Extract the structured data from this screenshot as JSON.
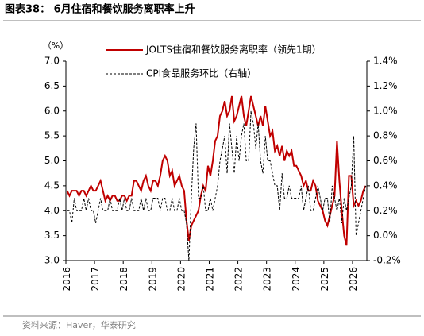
{
  "chart_data": {
    "type": "line",
    "title": "图表38： 6月住宿和餐饮服务离职率上升",
    "unit_label": "（%）",
    "source": "资料来源：Haver，华泰研究",
    "categories": [
      "2016",
      null,
      null,
      null,
      null,
      null,
      null,
      null,
      null,
      null,
      null,
      null,
      "2017",
      null,
      null,
      null,
      null,
      null,
      null,
      null,
      null,
      null,
      null,
      null,
      "2018",
      null,
      null,
      null,
      null,
      null,
      null,
      null,
      null,
      null,
      null,
      null,
      "2019",
      null,
      null,
      null,
      null,
      null,
      null,
      null,
      null,
      null,
      null,
      null,
      "2020",
      null,
      null,
      null,
      null,
      null,
      null,
      null,
      null,
      null,
      null,
      null,
      "2021",
      null,
      null,
      null,
      null,
      null,
      null,
      null,
      null,
      null,
      null,
      null,
      "2022",
      null,
      null,
      null,
      null,
      null,
      null,
      null,
      null,
      null,
      null,
      null,
      "2023",
      null,
      null,
      null,
      null,
      null,
      null,
      null,
      null,
      null,
      null,
      null,
      "2024",
      null,
      null,
      null,
      null,
      null,
      null,
      null,
      null,
      null,
      null,
      null,
      "2025",
      null,
      null,
      null,
      null,
      null,
      null,
      null,
      null,
      null,
      null,
      null,
      "2026",
      null,
      null,
      null,
      null,
      null
    ],
    "series": [
      {
        "name": "JOLTS住宿和餐饮服务离职率（领先1期）",
        "color": "#c00000",
        "style": "solid",
        "values": [
          4.4,
          4.3,
          4.4,
          4.4,
          4.4,
          4.3,
          4.4,
          4.4,
          4.3,
          4.4,
          4.5,
          4.4,
          4.4,
          4.5,
          4.6,
          4.4,
          4.2,
          4.3,
          4.2,
          4.3,
          4.3,
          4.2,
          4.2,
          4.3,
          4.3,
          4.2,
          4.3,
          4.3,
          4.6,
          4.6,
          4.5,
          4.4,
          4.6,
          4.7,
          4.5,
          4.4,
          4.6,
          4.6,
          4.5,
          4.7,
          5.0,
          5.1,
          5.0,
          4.7,
          4.8,
          4.5,
          4.6,
          4.7,
          4.5,
          4.4,
          3.8,
          3.4,
          3.7,
          3.8,
          3.9,
          4.0,
          4.3,
          4.5,
          4.4,
          4.9,
          4.7,
          5.0,
          5.4,
          5.5,
          5.9,
          6.0,
          6.2,
          5.9,
          6.0,
          6.3,
          5.8,
          5.9,
          6.1,
          6.3,
          5.9,
          5.7,
          6.0,
          6.3,
          6.1,
          5.9,
          5.7,
          5.9,
          5.7,
          6.1,
          5.8,
          5.5,
          5.6,
          5.2,
          5.3,
          5.1,
          5.3,
          5.0,
          5.2,
          5.1,
          5.2,
          4.9,
          4.9,
          4.8,
          4.7,
          4.5,
          4.6,
          4.4,
          4.4,
          4.6,
          4.5,
          4.2,
          4.1,
          4.0,
          3.8,
          3.7,
          3.9,
          4.1,
          4.3,
          5.4,
          4.6,
          4.0,
          3.5,
          3.3,
          4.7,
          4.7,
          4.1,
          4.2,
          4.1,
          4.2,
          4.4,
          4.5
        ]
      },
      {
        "name": "CPI食品服务环比（右轴）",
        "color": "#000000",
        "style": "dashed",
        "axis": "y2",
        "values": [
          0.2,
          0.2,
          0.1,
          0.3,
          0.2,
          0.2,
          0.2,
          0.3,
          0.2,
          0.3,
          0.2,
          0.2,
          0.1,
          0.2,
          0.3,
          0.2,
          0.2,
          0.2,
          0.3,
          0.2,
          0.2,
          0.2,
          0.3,
          0.2,
          0.3,
          0.2,
          0.2,
          0.3,
          0.2,
          0.2,
          0.2,
          0.3,
          0.2,
          0.3,
          0.2,
          0.2,
          0.3,
          0.3,
          0.3,
          0.2,
          0.3,
          0.3,
          0.2,
          0.2,
          0.3,
          0.2,
          0.2,
          0.3,
          0.2,
          0.2,
          0.1,
          -0.2,
          0.3,
          0.7,
          0.9,
          0.3,
          0.3,
          0.4,
          0.2,
          0.2,
          0.3,
          0.2,
          0.3,
          0.4,
          0.6,
          0.7,
          0.8,
          0.5,
          0.9,
          0.7,
          0.5,
          0.8,
          0.6,
          0.8,
          0.9,
          0.6,
          0.6,
          1.0,
          0.9,
          0.7,
          0.9,
          0.6,
          0.5,
          0.8,
          0.6,
          0.6,
          0.5,
          0.4,
          0.4,
          0.2,
          0.5,
          0.3,
          0.3,
          0.4,
          0.3,
          0.3,
          0.3,
          0.3,
          0.4,
          0.2,
          0.3,
          0.4,
          0.2,
          0.2,
          0.3,
          0.4,
          0.3,
          0.2,
          0.3,
          0.3,
          0.1,
          0.4,
          0.3,
          0.2,
          0.3,
          0.1,
          0.3,
          0.2,
          0.3,
          0.4,
          0.8,
          0.0,
          0.1,
          0.2,
          0.3,
          0.4
        ]
      }
    ],
    "ylim": [
      3,
      7
    ],
    "yticks": [
      {
        "value": 3,
        "label": "3.0"
      },
      3.5,
      {
        "value": 4,
        "label": "4.0"
      },
      4.5,
      {
        "value": 5,
        "label": "5.0"
      },
      5.5,
      {
        "value": 6,
        "label": "6.0"
      },
      6.5,
      {
        "value": 7,
        "label": "7.0"
      }
    ],
    "y2lim": [
      -0.2,
      1.4
    ],
    "y2ticks": [
      {
        "value": -0.2,
        "label": "-0.2%"
      },
      {
        "value": 0,
        "label": "0.0%"
      },
      {
        "value": 0.2,
        "label": "0.2%"
      },
      {
        "value": 0.4,
        "label": "0.4%"
      },
      {
        "value": 0.6,
        "label": "0.6%"
      },
      {
        "value": 0.8,
        "label": "0.8%"
      },
      {
        "value": 1.0,
        "label": "1.0%"
      },
      {
        "value": 1.2,
        "label": "1.2%"
      },
      {
        "value": 1.4,
        "label": "1.4%"
      }
    ],
    "grid": false
  }
}
